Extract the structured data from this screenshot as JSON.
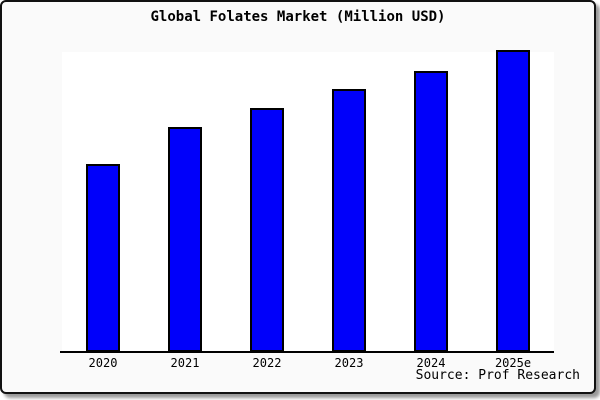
{
  "figure": {
    "background_color": "#fafafa",
    "plot_background_color": "#ffffff",
    "frame_border_color": "#111111",
    "axis_color": "#000000"
  },
  "chart_data": {
    "type": "bar",
    "title": "Global Folates Market (Million USD)",
    "categories": [
      "2020",
      "2021",
      "2022",
      "2023",
      "2024",
      "2025e"
    ],
    "values": [
      62.3,
      74.5,
      80.8,
      87.1,
      93.0,
      100.0
    ],
    "value_units": "relative height, % of 2025e bar (no y-axis, gridlines or data labels are shown)",
    "xlabel": "",
    "ylabel": "",
    "ylim": [
      0,
      100
    ],
    "grid": false,
    "legend": false,
    "bar_color": "#0000fa",
    "bar_border_color": "#000000",
    "source_note": "Source: Prof Research"
  }
}
